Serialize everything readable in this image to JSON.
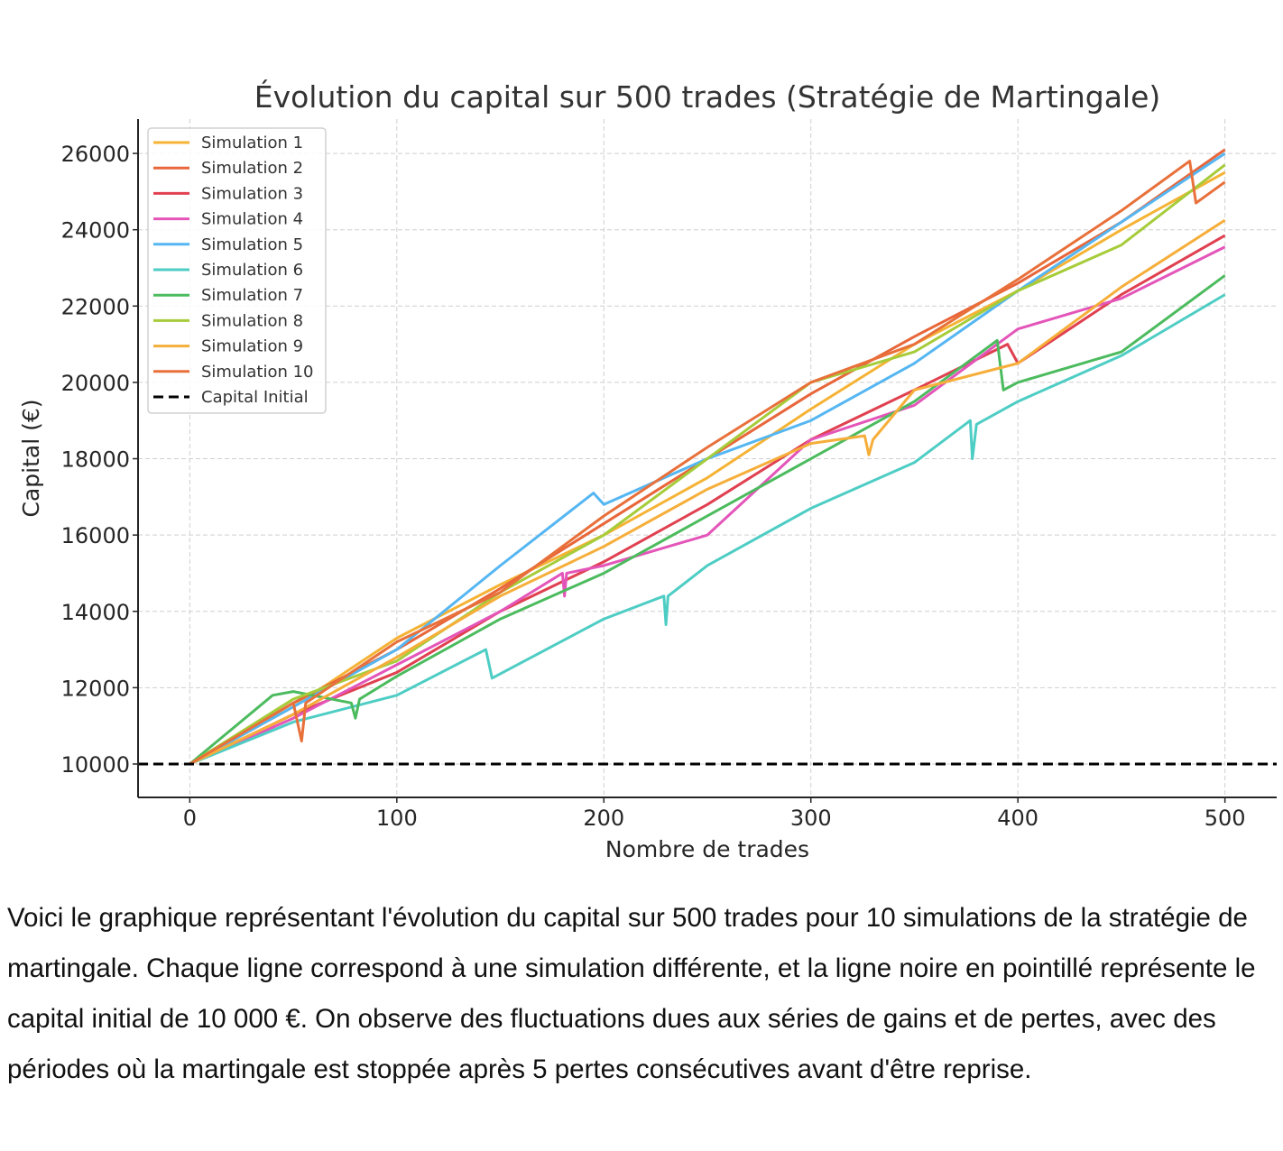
{
  "chart_data": {
    "type": "line",
    "title": "Évolution du capital sur 500 trades (Stratégie de Martingale)",
    "xlabel": "Nombre de trades",
    "ylabel": "Capital (€)",
    "xlim": [
      -25,
      525
    ],
    "ylim": [
      9125,
      26900
    ],
    "xticks": [
      0,
      100,
      200,
      300,
      400,
      500
    ],
    "yticks": [
      10000,
      12000,
      14000,
      16000,
      18000,
      20000,
      22000,
      24000,
      26000
    ],
    "grid": true,
    "legend_position": "top-left",
    "series": [
      {
        "name": "Simulation 1",
        "color": "#f5b335",
        "points": [
          [
            0,
            10000
          ],
          [
            50,
            11500
          ],
          [
            100,
            13300
          ],
          [
            150,
            14700
          ],
          [
            200,
            16000
          ],
          [
            250,
            17500
          ],
          [
            300,
            19300
          ],
          [
            350,
            21000
          ],
          [
            400,
            22400
          ],
          [
            450,
            24000
          ],
          [
            500,
            25500
          ]
        ]
      },
      {
        "name": "Simulation 2",
        "color": "#e8663a",
        "points": [
          [
            0,
            10000
          ],
          [
            50,
            11600
          ],
          [
            100,
            13000
          ],
          [
            150,
            14600
          ],
          [
            200,
            16300
          ],
          [
            250,
            18000
          ],
          [
            300,
            19700
          ],
          [
            350,
            21200
          ],
          [
            400,
            22600
          ],
          [
            450,
            24200
          ],
          [
            500,
            26100
          ]
        ]
      },
      {
        "name": "Simulation 3",
        "color": "#e04050",
        "points": [
          [
            0,
            10000
          ],
          [
            50,
            11300
          ],
          [
            100,
            12400
          ],
          [
            150,
            14000
          ],
          [
            200,
            15300
          ],
          [
            250,
            16800
          ],
          [
            300,
            18500
          ],
          [
            350,
            19800
          ],
          [
            395,
            21000
          ],
          [
            400,
            20500
          ],
          [
            450,
            22300
          ],
          [
            500,
            23850
          ]
        ]
      },
      {
        "name": "Simulation 4",
        "color": "#e455b9",
        "points": [
          [
            0,
            10000
          ],
          [
            50,
            11200
          ],
          [
            100,
            12600
          ],
          [
            150,
            14000
          ],
          [
            180,
            15000
          ],
          [
            181,
            14400
          ],
          [
            182,
            15000
          ],
          [
            200,
            15200
          ],
          [
            250,
            16000
          ],
          [
            300,
            18500
          ],
          [
            350,
            19400
          ],
          [
            400,
            21400
          ],
          [
            450,
            22200
          ],
          [
            500,
            23550
          ]
        ]
      },
      {
        "name": "Simulation 5",
        "color": "#55b6f2",
        "points": [
          [
            0,
            10000
          ],
          [
            50,
            11500
          ],
          [
            100,
            13000
          ],
          [
            150,
            15200
          ],
          [
            195,
            17100
          ],
          [
            200,
            16800
          ],
          [
            250,
            18000
          ],
          [
            300,
            19000
          ],
          [
            350,
            20500
          ],
          [
            400,
            22400
          ],
          [
            450,
            24200
          ],
          [
            500,
            26000
          ]
        ]
      },
      {
        "name": "Simulation 6",
        "color": "#4ecdc4",
        "points": [
          [
            0,
            10000
          ],
          [
            50,
            11100
          ],
          [
            100,
            11800
          ],
          [
            143,
            13000
          ],
          [
            146,
            12250
          ],
          [
            200,
            13800
          ],
          [
            229,
            14400
          ],
          [
            230,
            13650
          ],
          [
            231,
            14400
          ],
          [
            250,
            15200
          ],
          [
            300,
            16700
          ],
          [
            350,
            17900
          ],
          [
            377,
            19000
          ],
          [
            378,
            18000
          ],
          [
            380,
            18900
          ],
          [
            400,
            19500
          ],
          [
            450,
            20700
          ],
          [
            500,
            22300
          ]
        ]
      },
      {
        "name": "Simulation 7",
        "color": "#4cbb5e",
        "points": [
          [
            0,
            10000
          ],
          [
            40,
            11800
          ],
          [
            50,
            11900
          ],
          [
            78,
            11600
          ],
          [
            80,
            11200
          ],
          [
            82,
            11700
          ],
          [
            100,
            12300
          ],
          [
            150,
            13800
          ],
          [
            200,
            15000
          ],
          [
            250,
            16500
          ],
          [
            300,
            18000
          ],
          [
            350,
            19500
          ],
          [
            390,
            21100
          ],
          [
            393,
            19800
          ],
          [
            400,
            20000
          ],
          [
            450,
            20800
          ],
          [
            500,
            22800
          ]
        ]
      },
      {
        "name": "Simulation 8",
        "color": "#a6cc3a",
        "points": [
          [
            0,
            10000
          ],
          [
            50,
            11700
          ],
          [
            100,
            12700
          ],
          [
            150,
            14500
          ],
          [
            200,
            16000
          ],
          [
            250,
            18000
          ],
          [
            300,
            20000
          ],
          [
            350,
            20800
          ],
          [
            400,
            22400
          ],
          [
            450,
            23600
          ],
          [
            500,
            25700
          ]
        ]
      },
      {
        "name": "Simulation 9",
        "color": "#f6ae3a",
        "points": [
          [
            0,
            10000
          ],
          [
            50,
            11300
          ],
          [
            100,
            12800
          ],
          [
            150,
            14400
          ],
          [
            200,
            15700
          ],
          [
            250,
            17200
          ],
          [
            300,
            18400
          ],
          [
            326,
            18600
          ],
          [
            328,
            18100
          ],
          [
            330,
            18500
          ],
          [
            350,
            19800
          ],
          [
            400,
            20500
          ],
          [
            450,
            22500
          ],
          [
            500,
            24250
          ]
        ]
      },
      {
        "name": "Simulation 10",
        "color": "#e8703a",
        "points": [
          [
            0,
            10000
          ],
          [
            50,
            11600
          ],
          [
            54,
            10600
          ],
          [
            56,
            11600
          ],
          [
            100,
            13200
          ],
          [
            150,
            14500
          ],
          [
            200,
            16500
          ],
          [
            250,
            18300
          ],
          [
            300,
            20000
          ],
          [
            350,
            21000
          ],
          [
            400,
            22700
          ],
          [
            450,
            24500
          ],
          [
            483,
            25800
          ],
          [
            486,
            24700
          ],
          [
            500,
            25250
          ]
        ]
      }
    ],
    "reference_line": {
      "name": "Capital Initial",
      "value": 10000,
      "color": "#000000",
      "style": "dashed"
    }
  },
  "caption": "Voici le graphique représentant l'évolution du capital sur 500 trades pour 10 simulations de la stratégie de martingale. Chaque ligne correspond à une simulation différente, et la ligne noire en pointillé représente le capital initial de 10 000 €. On observe des fluctuations dues aux séries de gains et de pertes, avec des périodes où la martingale est stoppée après 5 pertes consécutives avant d'être reprise."
}
